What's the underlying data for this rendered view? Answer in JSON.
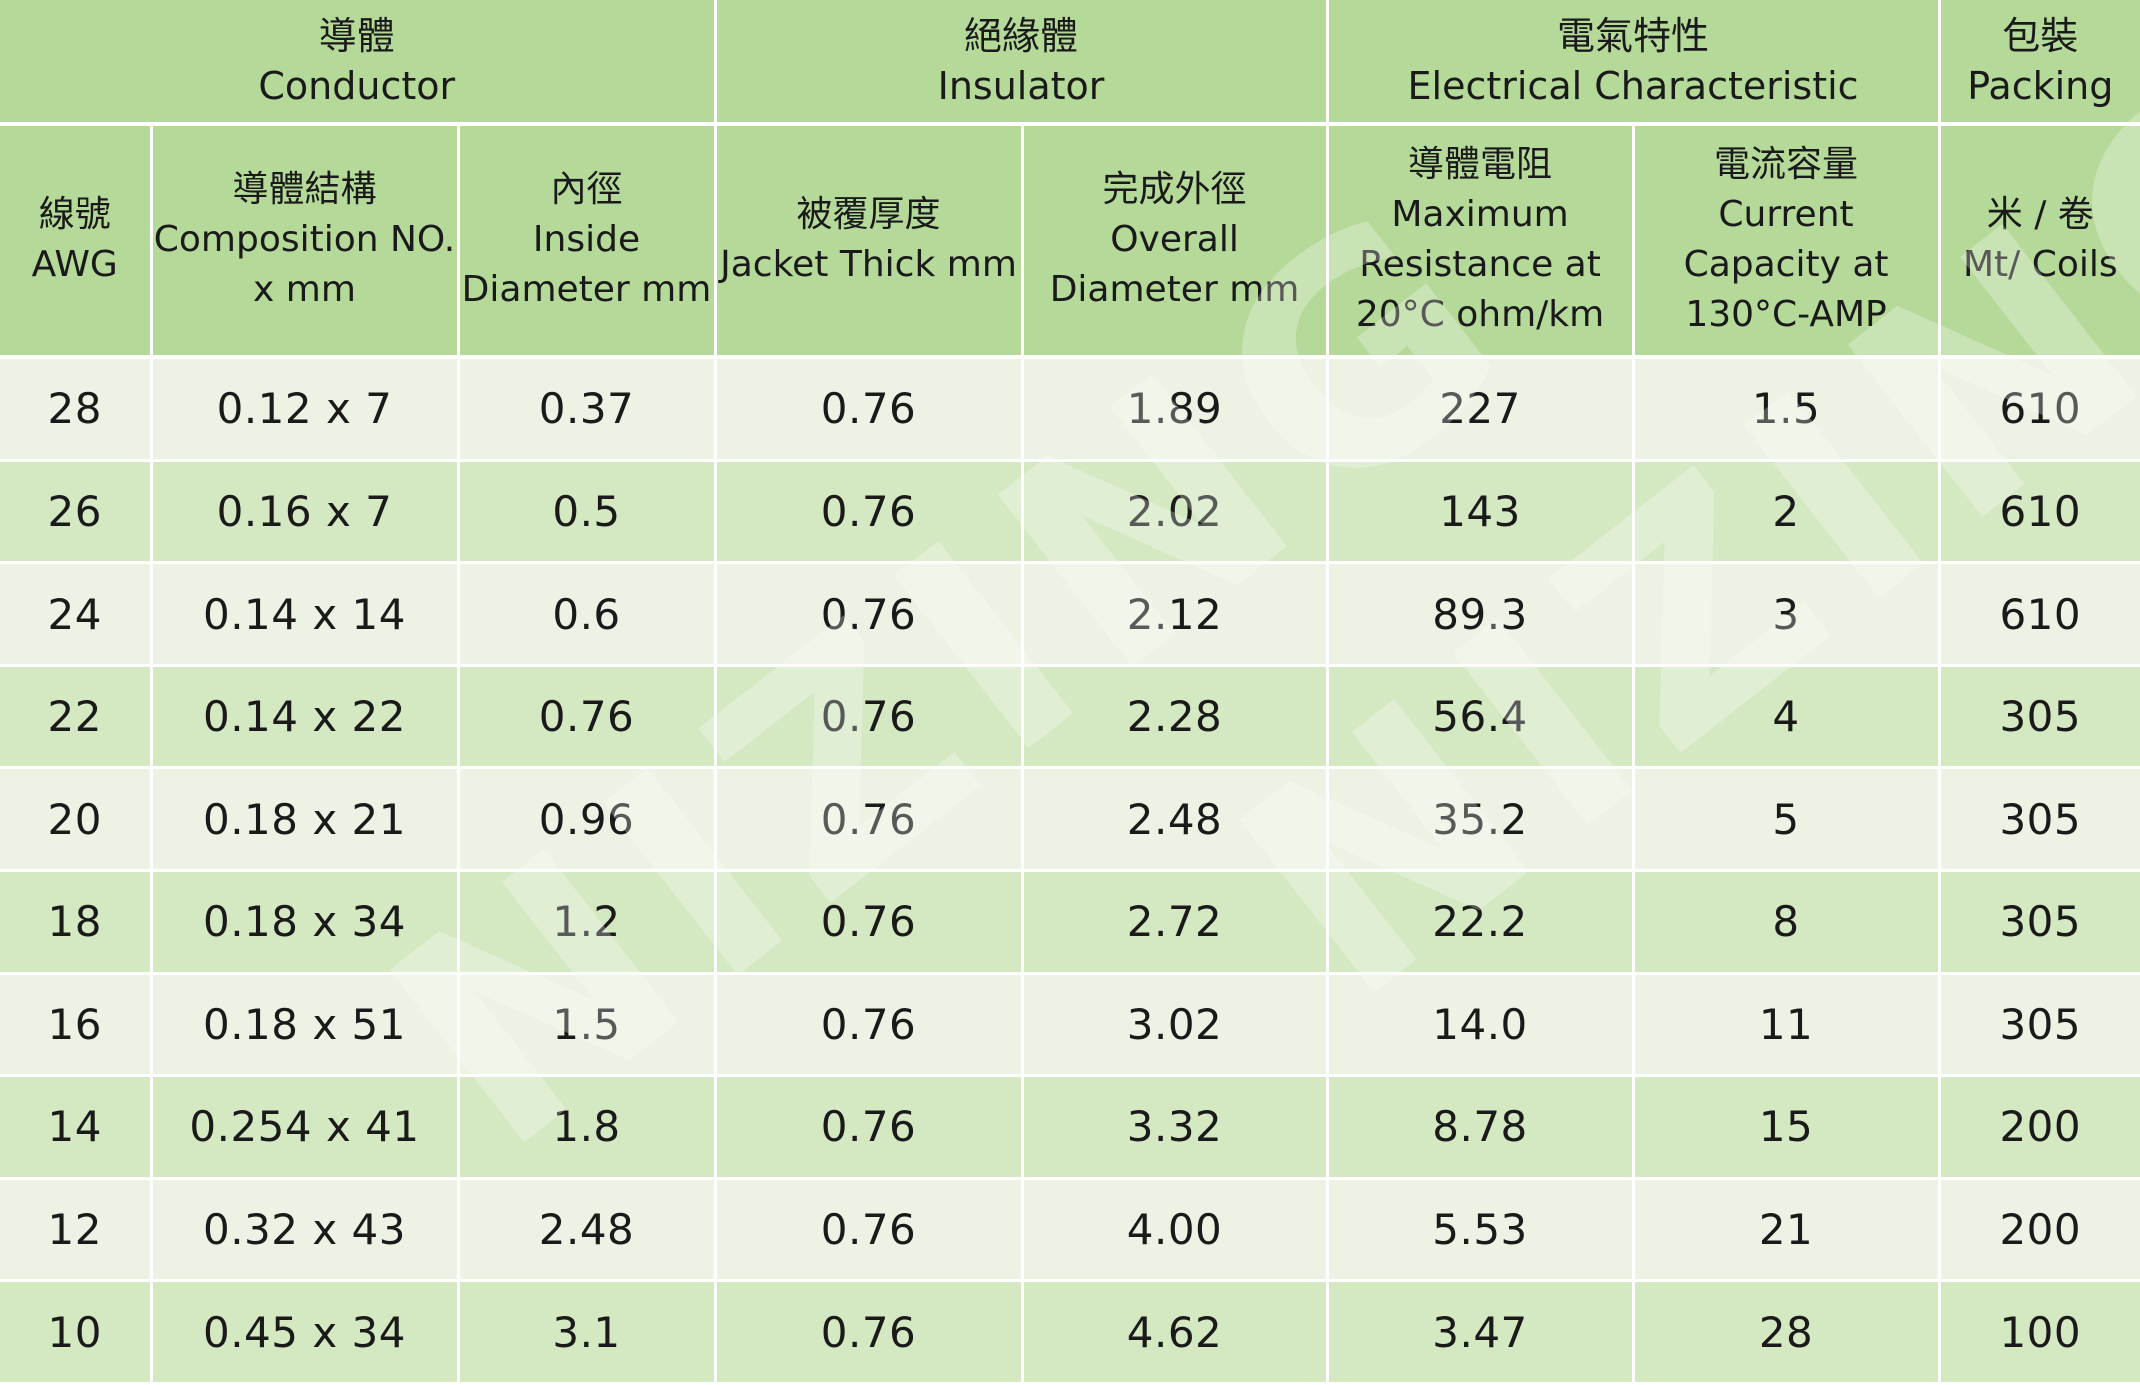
{
  "groups": {
    "conductor": {
      "zh": "導體",
      "en": "Conductor"
    },
    "insulator": {
      "zh": "絕緣體",
      "en": "Insulator"
    },
    "electrical": {
      "zh": "電氣特性",
      "en": "Electrical Characteristic"
    },
    "packing": {
      "zh": "包裝",
      "en": "Packing"
    }
  },
  "columns": [
    {
      "zh": "線號",
      "en": "AWG"
    },
    {
      "zh": "導體結構",
      "en": "Composition NO. x mm"
    },
    {
      "zh": "內徑",
      "en": "Inside Diameter mm"
    },
    {
      "zh": "被覆厚度",
      "en": "Jacket Thick mm"
    },
    {
      "zh": "完成外徑",
      "en": "Overall Diameter mm"
    },
    {
      "zh": "導體電阻",
      "en": "Maximum Resistance at 20°C ohm/km"
    },
    {
      "zh": "電流容量",
      "en": "Current Capacity at 130°C-AMP"
    },
    {
      "zh": "米 / 卷",
      "en": "Mt/ Coils"
    }
  ],
  "rows": [
    [
      "28",
      "0.12 x 7",
      "0.37",
      "0.76",
      "1.89",
      "227",
      "1.5",
      "610"
    ],
    [
      "26",
      "0.16 x 7",
      "0.5",
      "0.76",
      "2.02",
      "143",
      "2",
      "610"
    ],
    [
      "24",
      "0.14 x 14",
      "0.6",
      "0.76",
      "2.12",
      "89.3",
      "3",
      "610"
    ],
    [
      "22",
      "0.14 x 22",
      "0.76",
      "0.76",
      "2.28",
      "56.4",
      "4",
      "305"
    ],
    [
      "20",
      "0.18 x 21",
      "0.96",
      "0.76",
      "2.48",
      "35.2",
      "5",
      "305"
    ],
    [
      "18",
      "0.18 x 34",
      "1.2",
      "0.76",
      "2.72",
      "22.2",
      "8",
      "305"
    ],
    [
      "16",
      "0.18 x 51",
      "1.5",
      "0.76",
      "3.02",
      "14.0",
      "11",
      "305"
    ],
    [
      "14",
      "0.254 x 41",
      "1.8",
      "0.76",
      "3.32",
      "8.78",
      "15",
      "200"
    ],
    [
      "12",
      "0.32 x 43",
      "2.48",
      "0.76",
      "4.00",
      "5.53",
      "21",
      "200"
    ],
    [
      "10",
      "0.45 x 34",
      "3.1",
      "0.76",
      "4.62",
      "3.47",
      "28",
      "100"
    ]
  ],
  "watermark": "NIZING",
  "colors": {
    "header_bg": "#b5d999",
    "row_light": "#ecf3e4",
    "row_dark": "#d4e8c2"
  }
}
